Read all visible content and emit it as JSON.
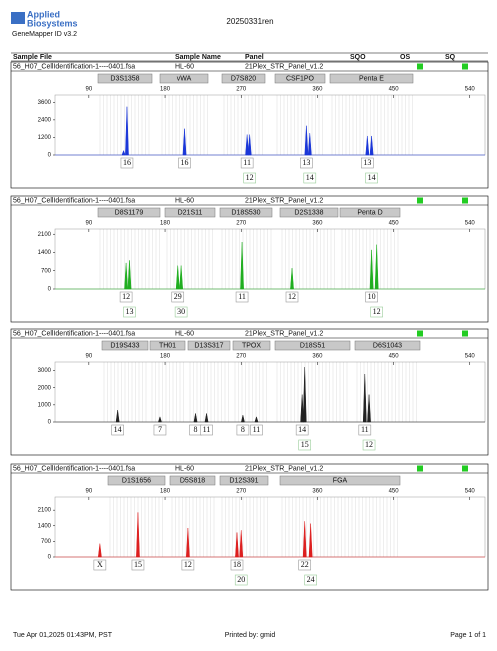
{
  "header": {
    "brand": [
      "Applied",
      "Biosystems"
    ],
    "software": "GeneMapper ID v3.2",
    "title": "20250331ren"
  },
  "columns": [
    "Sample File",
    "Sample Name",
    "Panel",
    "SQO",
    "OS",
    "SQ"
  ],
  "panels": [
    {
      "sample_file": "56_H07_CellIdentification-1----0401.fsa",
      "sample_name": "HL-60",
      "panel": "21Plex_STR_Panel_v1.2",
      "color": "#1a36d8",
      "markers": [
        "D3S1358",
        "vWA",
        "D7S820",
        "CSF1PO",
        "Penta E"
      ],
      "xlim": [
        50,
        558
      ],
      "xticks": [
        90,
        180,
        270,
        360,
        450,
        540
      ],
      "ylim": [
        0,
        4100
      ],
      "yticks": [
        0,
        1200,
        2400,
        3600
      ],
      "peaks": [
        {
          "size": 131,
          "height": 300
        },
        {
          "size": 135,
          "height": 3300,
          "allele": "16"
        },
        {
          "size": 203,
          "height": 1800,
          "allele": "16"
        },
        {
          "size": 277,
          "height": 1400,
          "allele": "11"
        },
        {
          "size": 280,
          "height": 1400,
          "allele": "12"
        },
        {
          "size": 347,
          "height": 2000,
          "allele": "13"
        },
        {
          "size": 351,
          "height": 1500,
          "allele": "14"
        },
        {
          "size": 419,
          "height": 1300,
          "allele": "13"
        },
        {
          "size": 424,
          "height": 1300,
          "allele": "14"
        }
      ]
    },
    {
      "sample_file": "56_H07_CellIdentification-1----0401.fsa",
      "sample_name": "HL-60",
      "panel": "21Plex_STR_Panel_v1.2",
      "color": "#1fae1f",
      "markers": [
        "D8S1179",
        "D21S11",
        "D18S530",
        "D2S1338",
        "Penta D"
      ],
      "xlim": [
        50,
        558
      ],
      "xticks": [
        90,
        180,
        270,
        360,
        450,
        540
      ],
      "ylim": [
        0,
        2300
      ],
      "yticks": [
        0,
        700,
        1400,
        2100
      ],
      "peaks": [
        {
          "size": 134,
          "height": 1000,
          "allele": "12"
        },
        {
          "size": 138,
          "height": 1100,
          "allele": "13"
        },
        {
          "size": 195,
          "height": 900,
          "allele": "29"
        },
        {
          "size": 199,
          "height": 900,
          "allele": "30"
        },
        {
          "size": 271,
          "height": 1800,
          "allele": "11"
        },
        {
          "size": 330,
          "height": 800,
          "allele": "12"
        },
        {
          "size": 424,
          "height": 1500,
          "allele": "10"
        },
        {
          "size": 430,
          "height": 1700,
          "allele": "12"
        }
      ]
    },
    {
      "sample_file": "56_H07_CellIdentification-1----0401.fsa",
      "sample_name": "HL-60",
      "panel": "21Plex_STR_Panel_v1.2",
      "color": "#222222",
      "markers": [
        "D19S433",
        "TH01",
        "D13S317",
        "TPOX",
        "D18S51",
        "D6S1043"
      ],
      "xlim": [
        50,
        558
      ],
      "xticks": [
        90,
        180,
        270,
        360,
        450,
        540
      ],
      "ylim": [
        0,
        3500
      ],
      "yticks": [
        0,
        1000,
        2000,
        3000
      ],
      "peaks": [
        {
          "size": 124,
          "height": 700,
          "allele": "14"
        },
        {
          "size": 174,
          "height": 300,
          "allele": "7"
        },
        {
          "size": 216,
          "height": 500,
          "allele": "8"
        },
        {
          "size": 229,
          "height": 500,
          "allele": "11"
        },
        {
          "size": 272,
          "height": 400,
          "allele": "8"
        },
        {
          "size": 288,
          "height": 300,
          "allele": "11"
        },
        {
          "size": 342,
          "height": 1600,
          "allele": "14"
        },
        {
          "size": 345,
          "height": 3200,
          "allele": "15"
        },
        {
          "size": 416,
          "height": 2800,
          "allele": "11"
        },
        {
          "size": 421,
          "height": 1600,
          "allele": "12"
        }
      ]
    },
    {
      "sample_file": "56_H07_CellIdentification-1----0401.fsa",
      "sample_name": "HL-60",
      "panel": "21Plex_STR_Panel_v1.2",
      "color": "#dd1f1f",
      "markers": [
        "D1S1656",
        "D5S818",
        "D12S391",
        "FGA"
      ],
      "xlim": [
        50,
        558
      ],
      "xticks": [
        90,
        180,
        270,
        360,
        450,
        540
      ],
      "ylim": [
        0,
        2690
      ],
      "yticks": [
        0,
        700,
        1400,
        2100
      ],
      "peaks": [
        {
          "size": 103,
          "height": 600,
          "allele": "X"
        },
        {
          "size": 148,
          "height": 2000,
          "allele": "15"
        },
        {
          "size": 207,
          "height": 1300,
          "allele": "12"
        },
        {
          "size": 265,
          "height": 1100,
          "allele": "18"
        },
        {
          "size": 270,
          "height": 1200,
          "allele": "20"
        },
        {
          "size": 345,
          "height": 1600,
          "allele": "22"
        },
        {
          "size": 352,
          "height": 1500,
          "allele": "24"
        }
      ]
    }
  ],
  "footer": {
    "printed": "Tue Apr 01,2025 01:43PM, PST",
    "by": "Printed by: gmid",
    "page": "Page 1 of 1"
  }
}
